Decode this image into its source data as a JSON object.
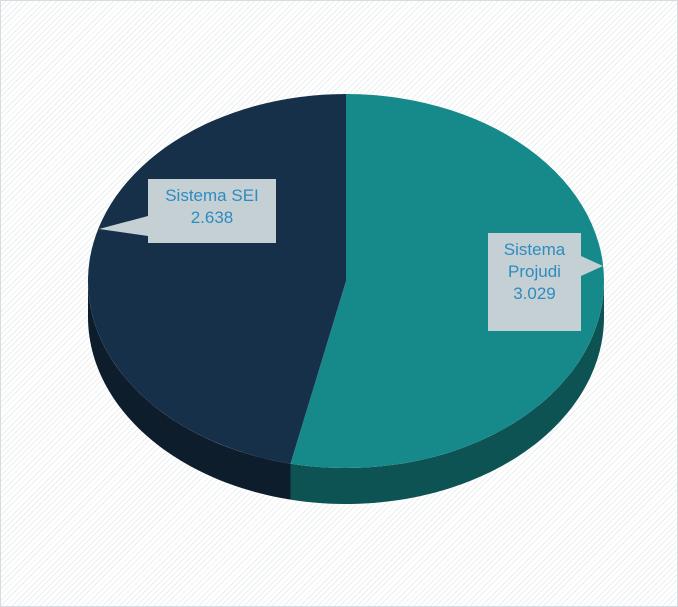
{
  "chart_data": {
    "type": "pie",
    "categories": [
      "Sistema Projudi",
      "Sistema SEI"
    ],
    "values": [
      3029,
      2638
    ],
    "value_labels": [
      "3.029",
      "2.638"
    ],
    "colors": [
      "#168a8a",
      "#17304a"
    ]
  }
}
